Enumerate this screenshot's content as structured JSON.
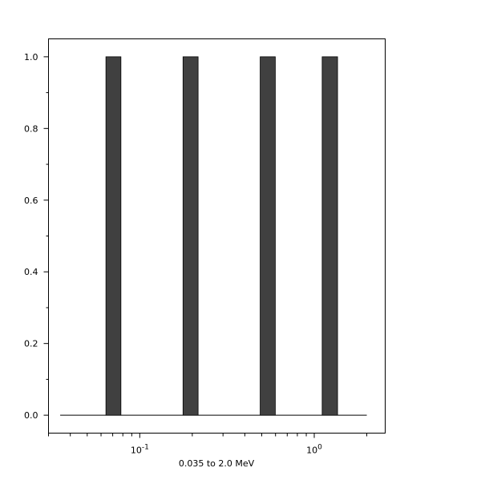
{
  "chart_data": {
    "type": "bar",
    "title": "",
    "xlabel": "0.035 to 2.0 MeV",
    "ylabel": "",
    "xscale": "log",
    "xlim": [
      0.03,
      2.55
    ],
    "ylim": [
      -0.05,
      1.05
    ],
    "x_range_line": [
      0.035,
      2.0
    ],
    "bins": [
      {
        "lo": 0.064,
        "hi": 0.078,
        "value": 1.0
      },
      {
        "lo": 0.177,
        "hi": 0.216,
        "value": 1.0
      },
      {
        "lo": 0.49,
        "hi": 0.598,
        "value": 1.0
      },
      {
        "lo": 1.11,
        "hi": 1.36,
        "value": 1.0
      }
    ],
    "yticks": [
      "0.0",
      "0.2",
      "0.4",
      "0.6",
      "0.8",
      "1.0"
    ],
    "xticks": [
      {
        "base": "10",
        "exp": "-1"
      },
      {
        "base": "10",
        "exp": "0"
      }
    ],
    "grid": false,
    "bar_color": "#404040"
  }
}
